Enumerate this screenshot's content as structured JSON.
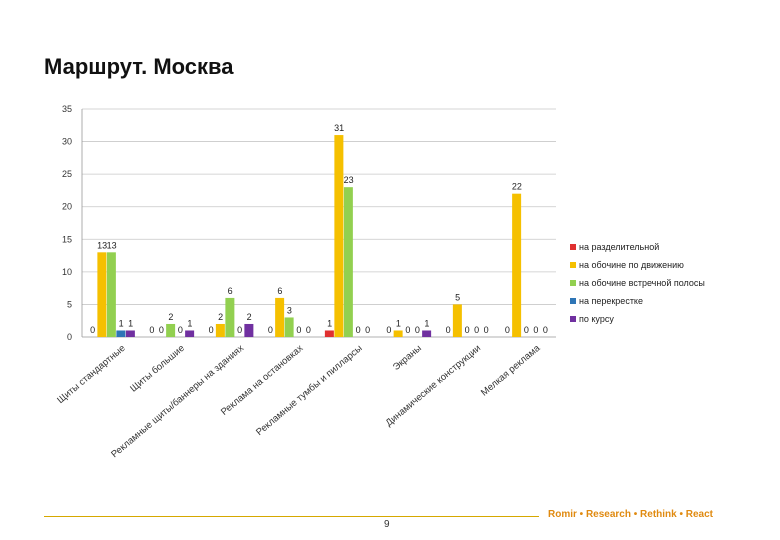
{
  "page": {
    "title": "Маршрут. Москва",
    "page_number": "9",
    "brand": "Romir • Research • Rethink • React"
  },
  "chart_data": {
    "type": "bar",
    "title": "",
    "xlabel": "",
    "ylabel": "",
    "ylim": [
      0,
      35
    ],
    "yticks": [
      0,
      5,
      10,
      15,
      20,
      25,
      30,
      35
    ],
    "grid": true,
    "legend_position": "right",
    "categories": [
      "Щиты стандартные",
      "Щиты большие",
      "Рекламные щиты/баннеры на зданиях",
      "Реклама на остановках",
      "Рекламные тумбы и пилларсы",
      "Экраны",
      "Динамические конструкции",
      "Мелкая реклама"
    ],
    "series": [
      {
        "name": "на разделительной",
        "color": "#e03030",
        "values": [
          0,
          0,
          0,
          0,
          1,
          0,
          0,
          0
        ]
      },
      {
        "name": "на обочине по движению",
        "color": "#f5c000",
        "values": [
          13,
          0,
          2,
          6,
          31,
          1,
          5,
          22
        ]
      },
      {
        "name": "на обочине встречной полосы",
        "color": "#92d050",
        "values": [
          13,
          2,
          6,
          3,
          23,
          0,
          0,
          0
        ]
      },
      {
        "name": "на перекрестке",
        "color": "#2e75b6",
        "values": [
          1,
          0,
          0,
          0,
          0,
          0,
          0,
          0
        ]
      },
      {
        "name": "по курсу",
        "color": "#7030a0",
        "values": [
          1,
          1,
          2,
          0,
          0,
          1,
          0,
          0
        ]
      }
    ]
  }
}
